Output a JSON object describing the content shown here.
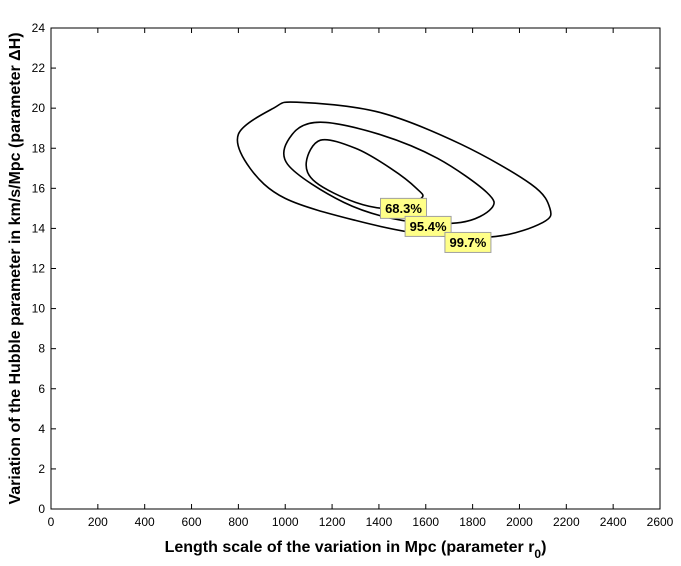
{
  "chart_data": {
    "type": "contour",
    "xlabel": "Length scale of the variation in Mpc (parameter r",
    "xlabel_sub": "0",
    "xlabel_close": ")",
    "ylabel": "Variation of the Hubble parameter in km/s/Mpc (parameter ΔH)",
    "xlim": [
      0,
      2600
    ],
    "ylim": [
      0,
      24
    ],
    "xticks": [
      0,
      200,
      400,
      600,
      800,
      1000,
      1200,
      1400,
      1600,
      1800,
      2000,
      2200,
      2400,
      2600
    ],
    "yticks": [
      0,
      2,
      4,
      6,
      8,
      10,
      12,
      14,
      16,
      18,
      20,
      22,
      24
    ],
    "grid": false,
    "contours": [
      {
        "level": "68.3%",
        "label_at": [
          1505,
          15.0
        ],
        "points": [
          [
            1150,
            18.4
          ],
          [
            1300,
            18.0
          ],
          [
            1450,
            17.0
          ],
          [
            1560,
            16.0
          ],
          [
            1580,
            15.5
          ],
          [
            1450,
            15.0
          ],
          [
            1300,
            15.3
          ],
          [
            1130,
            16.3
          ],
          [
            1090,
            17.3
          ],
          [
            1150,
            18.4
          ]
        ]
      },
      {
        "level": "95.4%",
        "label_at": [
          1610,
          14.1
        ],
        "points": [
          [
            1150,
            19.3
          ],
          [
            1400,
            18.7
          ],
          [
            1650,
            17.5
          ],
          [
            1860,
            15.8
          ],
          [
            1880,
            15.0
          ],
          [
            1750,
            14.3
          ],
          [
            1500,
            14.4
          ],
          [
            1250,
            15.3
          ],
          [
            1010,
            17.2
          ],
          [
            1030,
            18.7
          ],
          [
            1150,
            19.3
          ]
        ]
      },
      {
        "level": "99.7%",
        "label_at": [
          1780,
          13.3
        ],
        "points": [
          [
            1050,
            20.3
          ],
          [
            1400,
            19.8
          ],
          [
            1750,
            18.2
          ],
          [
            2050,
            16.2
          ],
          [
            2130,
            15.0
          ],
          [
            2100,
            14.3
          ],
          [
            1900,
            13.6
          ],
          [
            1600,
            13.7
          ],
          [
            1300,
            14.4
          ],
          [
            1000,
            15.5
          ],
          [
            850,
            17.0
          ],
          [
            800,
            18.7
          ],
          [
            950,
            20.0
          ],
          [
            1050,
            20.3
          ]
        ]
      }
    ]
  }
}
